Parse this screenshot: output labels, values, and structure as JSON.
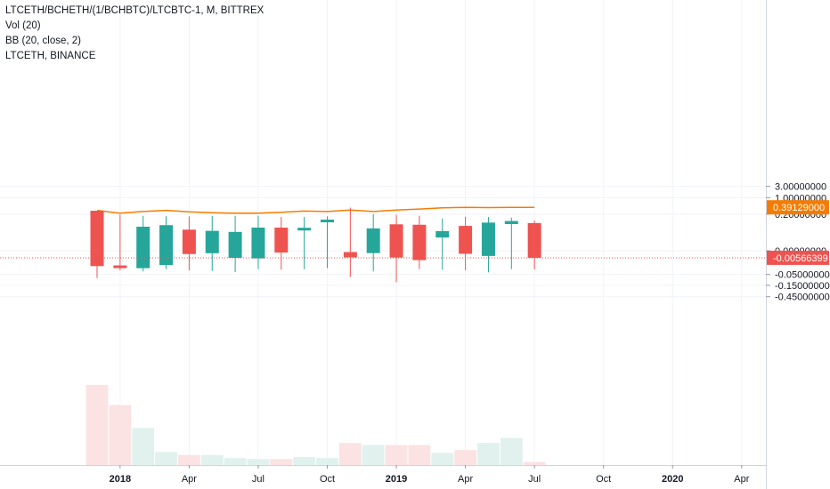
{
  "legend": {
    "symbol": "LTCETH/BCHETH/(1/BCHBTC)/LTCBTC-1, M, BITTREX",
    "vol": "Vol (20)",
    "bb": "BB (20, close, 2)",
    "compare": "LTCETH, BINANCE"
  },
  "colors": {
    "up": "#26a69a",
    "down": "#ef5350",
    "compare_line": "#f57c00",
    "vol_up": "#e1f2ee",
    "vol_down": "#fbe3e3",
    "price_line": "#ef5350",
    "grid": "#f0f3fa"
  },
  "chart_data": {
    "type": "candlestick",
    "title": "LTCETH/BCHETH/(1/BCHBTC)/LTCBTC-1, M, BITTREX",
    "y_scale": "log",
    "y_ticks": [
      "3.00000000",
      "1.00000000",
      "0.20000000",
      "0.00000000",
      "-0.05000000",
      "-0.15000000",
      "-0.45000000"
    ],
    "x_ticks": [
      "2018",
      "Apr",
      "Jul",
      "Oct",
      "2019",
      "Apr",
      "Jul",
      "Oct",
      "2020",
      "Apr"
    ],
    "price_labels": {
      "compare_last": "0.39129000",
      "main_last": "-0.00566399"
    },
    "candles": [
      {
        "month": "2017-12",
        "open": 0.28,
        "high": 0.28,
        "low": -0.073,
        "close": -0.0195,
        "volume": 80
      },
      {
        "month": "2018-01",
        "open": -0.018,
        "high": 0.19,
        "low": -0.032,
        "close": -0.0185,
        "volume": 60
      },
      {
        "month": "2018-02",
        "open": -0.025,
        "high": 0.17,
        "low": -0.036,
        "close": 0.055,
        "volume": 37
      },
      {
        "month": "2018-03",
        "open": -0.017,
        "high": 0.16,
        "low": -0.028,
        "close": 0.065,
        "volume": 13
      },
      {
        "month": "2018-04",
        "open": 0.04,
        "high": 0.16,
        "low": -0.032,
        "close": -0.0022,
        "volume": 10
      },
      {
        "month": "2018-05",
        "open": -0.0016,
        "high": 0.17,
        "low": -0.034,
        "close": 0.035,
        "volume": 10
      },
      {
        "month": "2018-06",
        "open": -0.0058,
        "high": 0.17,
        "low": -0.039,
        "close": 0.031,
        "volume": 7
      },
      {
        "month": "2018-07",
        "open": -0.0064,
        "high": 0.17,
        "low": -0.028,
        "close": 0.05,
        "volume": 6
      },
      {
        "month": "2018-08",
        "open": 0.05,
        "high": 0.15,
        "low": -0.03,
        "close": -0.0011,
        "volume": 6
      },
      {
        "month": "2018-09",
        "open": 0.049,
        "high": 0.15,
        "low": -0.028,
        "close": 0.049,
        "volume": 8
      },
      {
        "month": "2018-10",
        "open": 0.11,
        "high": 0.16,
        "low": -0.025,
        "close": 0.115,
        "volume": 7
      },
      {
        "month": "2018-11",
        "open": -0.0008,
        "high": 0.38,
        "low": -0.065,
        "close": -0.0052,
        "volume": 22
      },
      {
        "month": "2018-12",
        "open": -0.0015,
        "high": 0.2,
        "low": -0.036,
        "close": 0.046,
        "volume": 20
      },
      {
        "month": "2019-01",
        "open": 0.071,
        "high": 0.19,
        "low": -0.11,
        "close": -0.0054,
        "volume": 20
      },
      {
        "month": "2019-02",
        "open": 0.068,
        "high": 0.17,
        "low": -0.028,
        "close": -0.0085,
        "volume": 20
      },
      {
        "month": "2019-03",
        "open": 0.0155,
        "high": 0.13,
        "low": -0.03,
        "close": 0.034,
        "volume": 12
      },
      {
        "month": "2019-04",
        "open": 0.06,
        "high": 0.155,
        "low": -0.032,
        "close": -0.002,
        "volume": 15
      },
      {
        "month": "2019-05",
        "open": -0.0038,
        "high": 0.15,
        "low": -0.04,
        "close": 0.085,
        "volume": 22
      },
      {
        "month": "2019-06",
        "open": 0.073,
        "high": 0.14,
        "low": -0.028,
        "close": 0.1,
        "volume": 27
      },
      {
        "month": "2019-07",
        "open": 0.081,
        "high": 0.105,
        "low": -0.029,
        "close": -0.00566399,
        "volume": 3
      }
    ],
    "compare_series": {
      "name": "LTCETH, BINANCE",
      "values": [
        0.29,
        0.22,
        0.26,
        0.29,
        0.25,
        0.23,
        0.22,
        0.22,
        0.24,
        0.27,
        0.26,
        0.3,
        0.26,
        0.3,
        0.33,
        0.37,
        0.39,
        0.38,
        0.39,
        0.39129
      ]
    }
  }
}
